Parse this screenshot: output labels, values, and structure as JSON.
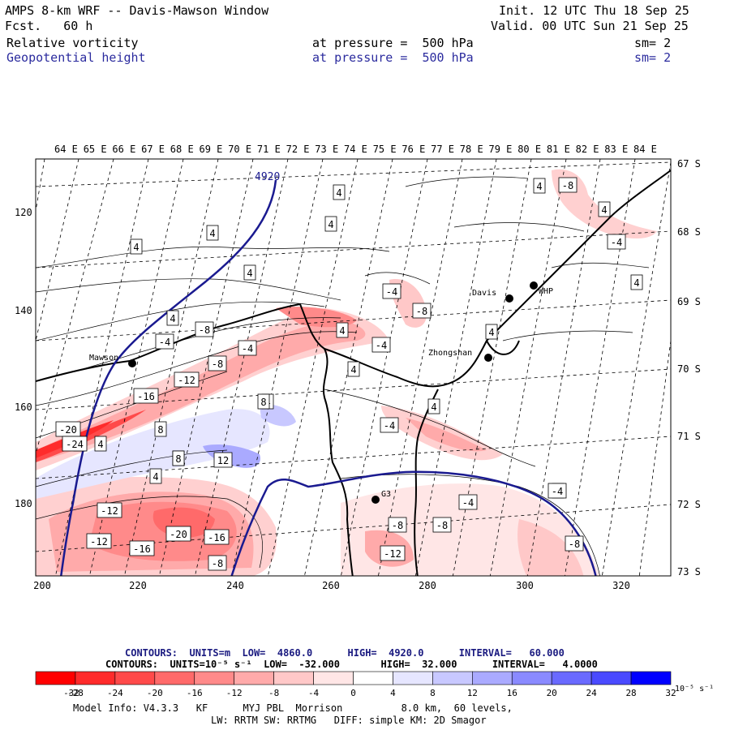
{
  "header": {
    "title": "AMPS 8-km WRF -- Davis-Mawson Window",
    "fcst": "Fcst.   60 h",
    "init": "Init. 12 UTC Thu 18 Sep 25",
    "valid": "Valid. 00 UTC Sun 21 Sep 25",
    "field1": {
      "name": "Relative vorticity",
      "pressure": "at pressure =  500 hPa",
      "sm": "sm= 2"
    },
    "field2": {
      "name": "Geopotential height",
      "pressure": "at pressure =  500 hPa",
      "sm": "sm= 2"
    }
  },
  "lon_labels": [
    "64 E",
    "65 E",
    "66 E",
    "67 E",
    "68 E",
    "69 E",
    "70 E",
    "71 E",
    "72 E",
    "73 E",
    "74 E",
    "75 E",
    "76 E",
    "77 E",
    "78 E",
    "79 E",
    "80 E",
    "81 E",
    "82 E",
    "83 E",
    "84 E"
  ],
  "lat_labels": [
    "67 S",
    "68 S",
    "69 S",
    "70 S",
    "71 S",
    "72 S",
    "73 S"
  ],
  "x_ticks": [
    "200",
    "220",
    "240",
    "260",
    "280",
    "300",
    "320"
  ],
  "y_ticks": [
    "120",
    "140",
    "160",
    "180"
  ],
  "stations": [
    {
      "name": "Mawson"
    },
    {
      "name": "Davis"
    },
    {
      "name": "WHP"
    },
    {
      "name": "Zhongshan"
    },
    {
      "name": "G3"
    }
  ],
  "height_label": "4920",
  "contour_labels": [
    "4",
    "4",
    "4",
    "4",
    "4",
    "4",
    "4",
    "4",
    "4",
    "4",
    "4",
    "4",
    "4",
    "4",
    "4",
    "4",
    "4",
    "4",
    "8",
    "8",
    "8",
    "8",
    "12",
    "-4",
    "-4",
    "-4",
    "-4",
    "-4",
    "-4",
    "-4",
    "-4",
    "-8",
    "-8",
    "-8",
    "-8",
    "-8",
    "-8",
    "-8",
    "-8",
    "-12",
    "-12",
    "-12",
    "-12",
    "-16",
    "-16",
    "-16",
    "-20",
    "-20",
    "-24"
  ],
  "contour_info": {
    "line1": "CONTOURS:  UNITS=m  LOW=  4860.0      HIGH=  4920.0      INTERVAL=   60.000",
    "line2": "CONTOURS:  UNITS=10⁻⁵ s⁻¹  LOW=  -32.000       HIGH=  32.000      INTERVAL=   4.0000"
  },
  "colorbar": {
    "colors": [
      "#ff0000",
      "#ff2b2b",
      "#ff4a4a",
      "#ff6a6a",
      "#ff8a8a",
      "#ffaaaa",
      "#ffc8c8",
      "#ffe6e6",
      "#ffffff",
      "#ffffff",
      "#e6e6ff",
      "#c8c8ff",
      "#aaaaff",
      "#8a8aff",
      "#6a6aff",
      "#4a4aff",
      "#0000ff"
    ],
    "labels": [
      "-32",
      "-28",
      "-24",
      "-20",
      "-16",
      "-12",
      "-8",
      "-4",
      "0",
      "4",
      "8",
      "12",
      "16",
      "20",
      "24",
      "28",
      "32"
    ],
    "unit": "10⁻⁵ s⁻¹"
  },
  "model_info": {
    "line1": "Model Info: V4.3.3   KF      MYJ PBL  Morrison          8.0 km,  60 levels,",
    "line2": "LW: RRTM SW: RRTMG   DIFF: simple KM: 2D Smagor"
  }
}
